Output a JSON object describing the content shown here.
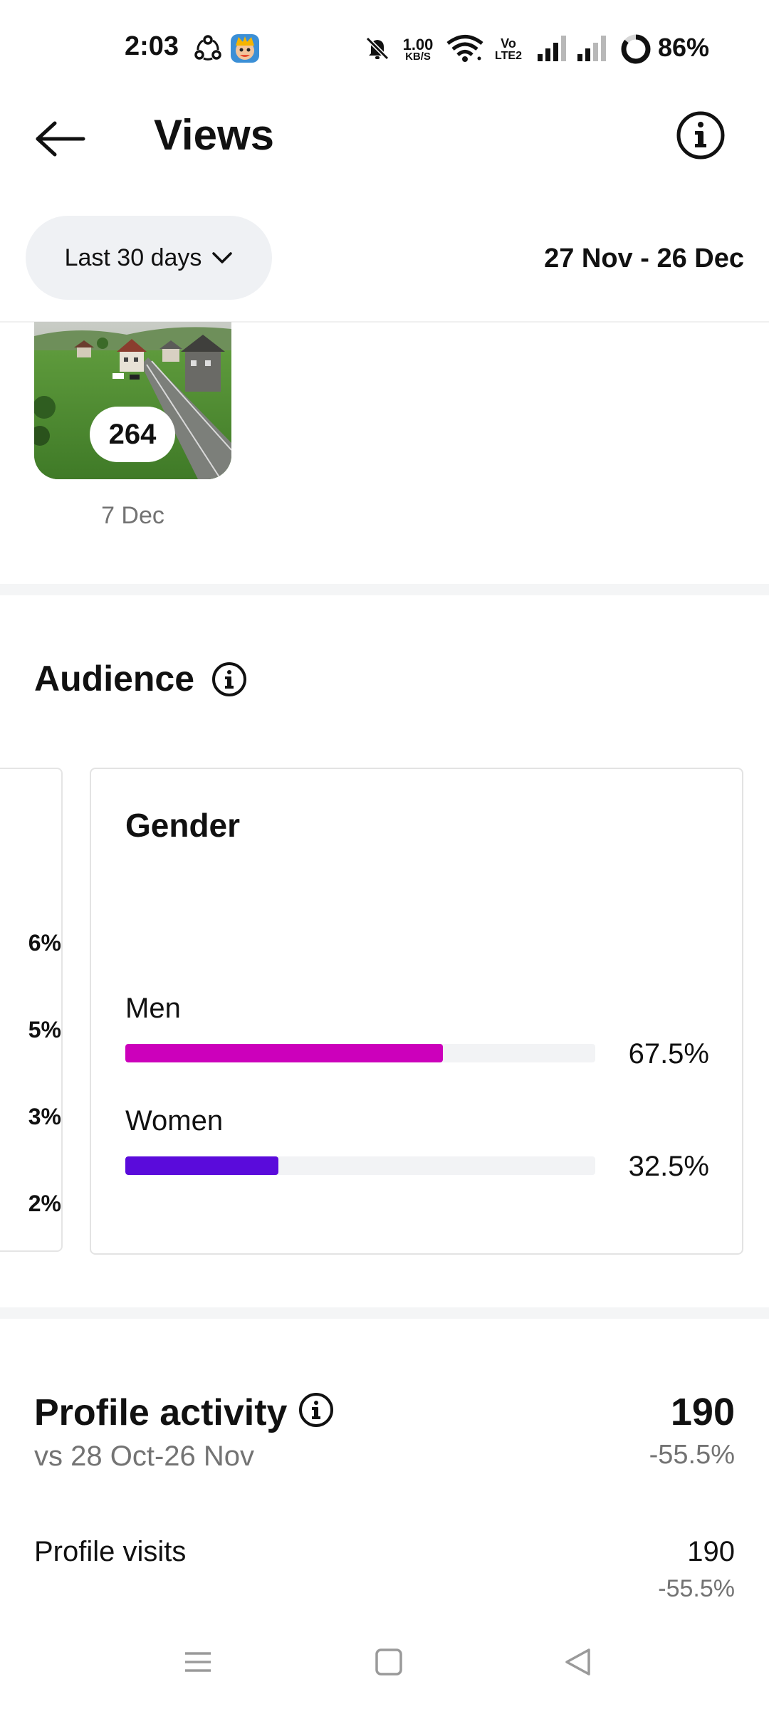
{
  "status_bar": {
    "time": "2:03",
    "net_speed_value": "1.00",
    "net_speed_unit": "KB/S",
    "volte_top": "Vo",
    "volte_bottom": "LTE2",
    "battery": "86%",
    "battery_level": 0.86
  },
  "header": {
    "title": "Views"
  },
  "filter": {
    "range_label": "Last 30 days",
    "date_range": "27 Nov - 26 Dec"
  },
  "top_content": {
    "views": "264",
    "date": "7 Dec"
  },
  "audience": {
    "title": "Audience",
    "partial_card_values": [
      "6%",
      "5%",
      "3%",
      "2%"
    ],
    "gender": {
      "title": "Gender",
      "rows": [
        {
          "label": "Men",
          "value": "67.5%",
          "fraction": 0.675,
          "color": "#cc00bb"
        },
        {
          "label": "Women",
          "value": "32.5%",
          "fraction": 0.325,
          "color": "#5a0bdb"
        }
      ]
    }
  },
  "profile_activity": {
    "title": "Profile activity",
    "comparison": "vs 28 Oct-26 Nov",
    "total": "190",
    "change": "-55.5%",
    "rows": [
      {
        "label": "Profile visits",
        "value": "190",
        "change": "-55.5%"
      }
    ]
  },
  "nav_bar": {
    "icons": [
      "menu-icon",
      "home-square-icon",
      "back-triangle-icon"
    ]
  }
}
